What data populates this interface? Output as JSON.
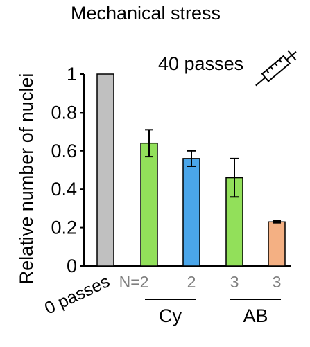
{
  "chart_data": {
    "type": "bar",
    "title": "Mechanical stress",
    "ylabel": "Relative number of nuclei",
    "ylim": [
      0,
      1
    ],
    "yticks": [
      0,
      0.2,
      0.4,
      0.6,
      0.8,
      1
    ],
    "ytick_labels": [
      "0",
      "0.2",
      "0.4",
      "0.6",
      "0.8",
      "1"
    ],
    "annotation": "40 passes",
    "annotation_icon": "syringe-icon",
    "x_label": "0 passes",
    "bars": [
      {
        "value": 1.0,
        "error": 0,
        "color": "#c0c0c0",
        "n_label": ""
      },
      {
        "value": 0.64,
        "error": 0.07,
        "color": "#92e05a",
        "n_label": "N=2"
      },
      {
        "value": 0.56,
        "error": 0.04,
        "color": "#4aa6ea",
        "n_label": "2"
      },
      {
        "value": 0.46,
        "error": 0.1,
        "color": "#92e05a",
        "n_label": "3"
      },
      {
        "value": 0.23,
        "error": 0.005,
        "color": "#f4b083",
        "n_label": "3"
      }
    ],
    "groups": [
      {
        "label": "Cy",
        "bars": [
          1,
          2
        ]
      },
      {
        "label": "AB",
        "bars": [
          3,
          4
        ]
      }
    ]
  }
}
